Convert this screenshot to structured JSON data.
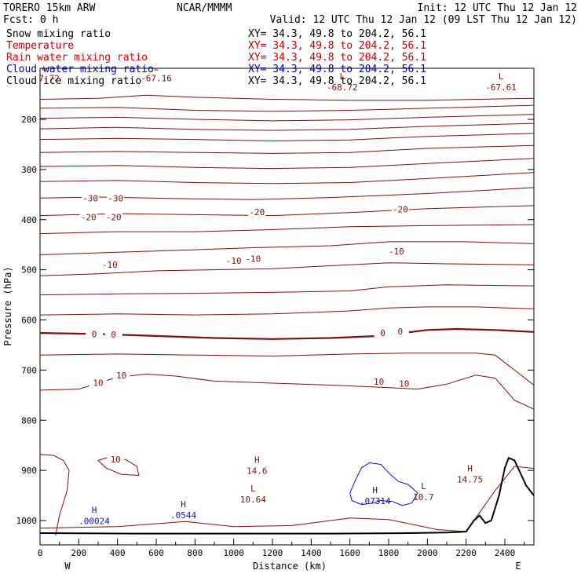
{
  "header": {
    "model": "TORERO  15km ARW",
    "org": "NCAR/MMMM",
    "init": "Init: 12 UTC Thu 12 Jan 12",
    "fcst": "Fcst:     0 h",
    "valid": "Valid: 12 UTC Thu 12 Jan 12 (09 LST Thu 12 Jan 12)"
  },
  "fields": [
    {
      "name": "Snow mixing ratio",
      "xy": "XY=  34.3, 49.8 to 204.2, 56.1",
      "color": "#000000"
    },
    {
      "name": "Temperature",
      "xy": "XY=  34.3, 49.8 to 204.2, 56.1",
      "color": "#c00000"
    },
    {
      "name": "Rain water mixing ratio",
      "xy": "XY=  34.3, 49.8 to 204.2, 56.1",
      "color": "#e00000"
    },
    {
      "name": "Cloud water mixing ratio",
      "xy": "XY=  34.3, 49.8 to 204.2, 56.1",
      "color": "#0000c0"
    },
    {
      "name": "Cloud ice mixing ratio",
      "xy": "XY=  34.3, 49.8 to 204.2, 56.1",
      "color": "#000000"
    }
  ],
  "colors": {
    "temperature": "#7a1010",
    "cloud_water": "#1010c0",
    "terrain": "#000000"
  },
  "chart_data": {
    "type": "vertical cross-section contour",
    "xlabel": "Distance (km)",
    "ylabel": "Pressure (hPa)",
    "xlim": [
      0,
      2550
    ],
    "ylim": [
      1035,
      90
    ],
    "xticks": [
      "0",
      "200",
      "400",
      "600",
      "800",
      "1000",
      "1200",
      "1400",
      "1600",
      "1800",
      "2000",
      "2200",
      "2400"
    ],
    "yticks": [
      "200",
      "300",
      "400",
      "500",
      "600",
      "700",
      "800",
      "900",
      "1000"
    ],
    "x_endpoints": {
      "left": "W",
      "right": "E"
    },
    "temperature_isotherms": [
      {
        "pts": [
          [
            0,
            160
          ],
          [
            300,
            158
          ],
          [
            550,
            152
          ],
          [
            800,
            156
          ],
          [
            1200,
            160
          ],
          [
            1600,
            162
          ],
          [
            2000,
            162
          ],
          [
            2550,
            158
          ]
        ]
      },
      {
        "pts": [
          [
            0,
            178
          ],
          [
            400,
            176
          ],
          [
            800,
            182
          ],
          [
            1200,
            184
          ],
          [
            1600,
            182
          ],
          [
            2000,
            178
          ],
          [
            2550,
            172
          ]
        ]
      },
      {
        "pts": [
          [
            0,
            198
          ],
          [
            400,
            196
          ],
          [
            800,
            200
          ],
          [
            1200,
            203
          ],
          [
            1600,
            201
          ],
          [
            2000,
            196
          ],
          [
            2550,
            190
          ]
        ]
      },
      {
        "pts": [
          [
            0,
            219
          ],
          [
            400,
            216
          ],
          [
            800,
            220
          ],
          [
            1200,
            222
          ],
          [
            1600,
            220
          ],
          [
            2000,
            214
          ],
          [
            2550,
            208
          ]
        ]
      },
      {
        "pts": [
          [
            0,
            240
          ],
          [
            400,
            238
          ],
          [
            800,
            240
          ],
          [
            1200,
            243
          ],
          [
            1600,
            241
          ],
          [
            2000,
            234
          ],
          [
            2550,
            228
          ]
        ]
      },
      {
        "pts": [
          [
            0,
            266
          ],
          [
            400,
            264
          ],
          [
            800,
            266
          ],
          [
            1200,
            268
          ],
          [
            1600,
            266
          ],
          [
            2000,
            258
          ],
          [
            2550,
            252
          ]
        ]
      },
      {
        "pts": [
          [
            0,
            294
          ],
          [
            400,
            292
          ],
          [
            800,
            296
          ],
          [
            1200,
            298
          ],
          [
            1600,
            296
          ],
          [
            2000,
            288
          ],
          [
            2550,
            278
          ]
        ]
      },
      {
        "pts": [
          [
            0,
            324
          ],
          [
            400,
            322
          ],
          [
            800,
            326
          ],
          [
            1200,
            328
          ],
          [
            1600,
            326
          ],
          [
            2000,
            318
          ],
          [
            2550,
            306
          ]
        ]
      },
      {
        "pts": [
          [
            0,
            357
          ],
          [
            300,
            355
          ],
          [
            700,
            358
          ],
          [
            1100,
            360
          ],
          [
            1500,
            356
          ],
          [
            2000,
            348
          ],
          [
            2550,
            336
          ]
        ]
      },
      {
        "pts": [
          [
            0,
            392
          ],
          [
            400,
            388
          ],
          [
            800,
            390
          ],
          [
            1200,
            392
          ],
          [
            1600,
            386
          ],
          [
            2000,
            378
          ],
          [
            2550,
            372
          ]
        ]
      },
      {
        "pts": [
          [
            0,
            428
          ],
          [
            400,
            424
          ],
          [
            800,
            424
          ],
          [
            1200,
            420
          ],
          [
            1600,
            414
          ],
          [
            2000,
            412
          ],
          [
            2550,
            410
          ]
        ]
      },
      {
        "pts": [
          [
            0,
            470
          ],
          [
            400,
            465
          ],
          [
            800,
            460
          ],
          [
            1100,
            456
          ],
          [
            1500,
            452
          ],
          [
            1800,
            444
          ],
          [
            2200,
            444
          ],
          [
            2550,
            448
          ]
        ]
      },
      {
        "pts": [
          [
            0,
            512
          ],
          [
            300,
            508
          ],
          [
            600,
            502
          ],
          [
            900,
            500
          ],
          [
            1200,
            498
          ],
          [
            1500,
            492
          ],
          [
            1800,
            486
          ],
          [
            2100,
            488
          ],
          [
            2550,
            490
          ]
        ]
      },
      {
        "pts": [
          [
            0,
            550
          ],
          [
            400,
            548
          ],
          [
            800,
            547
          ],
          [
            1200,
            545
          ],
          [
            1600,
            542
          ],
          [
            1800,
            534
          ],
          [
            2100,
            530
          ],
          [
            2550,
            532
          ]
        ]
      },
      {
        "pts": [
          [
            0,
            590
          ],
          [
            400,
            588
          ],
          [
            800,
            590
          ],
          [
            1200,
            588
          ],
          [
            1600,
            582
          ],
          [
            1800,
            576
          ],
          [
            2000,
            574
          ],
          [
            2250,
            574
          ],
          [
            2550,
            578
          ]
        ]
      },
      {
        "pts": [
          [
            0,
            626
          ],
          [
            300,
            628
          ],
          [
            600,
            632
          ],
          [
            900,
            636
          ],
          [
            1200,
            638
          ],
          [
            1500,
            636
          ],
          [
            1750,
            632
          ],
          [
            2000,
            620
          ],
          [
            2150,
            618
          ],
          [
            2350,
            620
          ],
          [
            2550,
            624
          ]
        ],
        "bold": true
      },
      {
        "pts": [
          [
            0,
            670
          ],
          [
            400,
            668
          ],
          [
            800,
            670
          ],
          [
            1200,
            672
          ],
          [
            1600,
            668
          ],
          [
            1900,
            666
          ],
          [
            2250,
            666
          ],
          [
            2350,
            670
          ],
          [
            2450,
            700
          ],
          [
            2550,
            730
          ]
        ]
      },
      {
        "pts": [
          [
            0,
            740
          ],
          [
            200,
            738
          ],
          [
            400,
            714
          ],
          [
            550,
            708
          ],
          [
            700,
            712
          ],
          [
            900,
            722
          ],
          [
            1200,
            726
          ],
          [
            1500,
            730
          ],
          [
            1750,
            734
          ],
          [
            1950,
            738
          ],
          [
            2100,
            728
          ],
          [
            2250,
            710
          ],
          [
            2350,
            716
          ],
          [
            2450,
            760
          ],
          [
            2550,
            778
          ]
        ]
      },
      {
        "pts": [
          [
            0,
            868
          ],
          [
            70,
            870
          ],
          [
            120,
            880
          ],
          [
            150,
            900
          ],
          [
            140,
            940
          ],
          [
            100,
            990
          ],
          [
            80,
            1030
          ]
        ]
      },
      {
        "pts": [
          [
            0,
            1015
          ],
          [
            400,
            1012
          ],
          [
            750,
            1002
          ],
          [
            1000,
            1012
          ],
          [
            1300,
            1010
          ],
          [
            1600,
            995
          ],
          [
            1800,
            998
          ],
          [
            2050,
            1018
          ],
          [
            2200,
            1022
          ],
          [
            2350,
            940
          ],
          [
            2450,
            892
          ],
          [
            2550,
            896
          ]
        ]
      }
    ],
    "isotherm_labels": [
      {
        "text": "-30",
        "x": 260,
        "p": 357
      },
      {
        "text": "-30",
        "x": 390,
        "p": 357
      },
      {
        "text": "-20",
        "x": 250,
        "p": 395
      },
      {
        "text": "-20",
        "x": 380,
        "p": 395
      },
      {
        "text": "-20",
        "x": 1120,
        "p": 385
      },
      {
        "text": "-20",
        "x": 1860,
        "p": 379
      },
      {
        "text": "-10",
        "x": 360,
        "p": 490
      },
      {
        "text": "-10",
        "x": 1000,
        "p": 482
      },
      {
        "text": "-10",
        "x": 1100,
        "p": 478
      },
      {
        "text": "-10",
        "x": 1840,
        "p": 463
      },
      {
        "text": "0",
        "x": 280,
        "p": 628
      },
      {
        "text": "0",
        "x": 380,
        "p": 629
      },
      {
        "text": "0",
        "x": 1770,
        "p": 626
      },
      {
        "text": "0",
        "x": 1860,
        "p": 623
      },
      {
        "text": "10",
        "x": 300,
        "p": 725
      },
      {
        "text": "10",
        "x": 420,
        "p": 710
      },
      {
        "text": "10",
        "x": 1750,
        "p": 723
      },
      {
        "text": "10",
        "x": 1880,
        "p": 727
      },
      {
        "text": "10",
        "x": 390,
        "p": 878
      }
    ],
    "isolated_contour": {
      "pts": [
        [
          300,
          880
        ],
        [
          360,
          873
        ],
        [
          440,
          878
        ],
        [
          500,
          892
        ],
        [
          510,
          910
        ],
        [
          420,
          908
        ],
        [
          340,
          895
        ],
        [
          300,
          880
        ]
      ]
    },
    "cloud_water_contour": {
      "pts": [
        [
          1600,
          945
        ],
        [
          1610,
          960
        ],
        [
          1660,
          968
        ],
        [
          1720,
          965
        ],
        [
          1760,
          960
        ],
        [
          1820,
          962
        ],
        [
          1870,
          970
        ],
        [
          1920,
          965
        ],
        [
          1950,
          945
        ],
        [
          1900,
          928
        ],
        [
          1850,
          922
        ],
        [
          1800,
          905
        ],
        [
          1760,
          888
        ],
        [
          1700,
          885
        ],
        [
          1660,
          895
        ],
        [
          1630,
          918
        ],
        [
          1600,
          945
        ]
      ]
    },
    "extrema": [
      {
        "kind": "H",
        "value": ".00024",
        "x": 280,
        "p": 985,
        "series": "cloud_water"
      },
      {
        "kind": "H",
        "value": ".0544",
        "x": 740,
        "p": 973,
        "series": "cloud_water"
      },
      {
        "kind": "H",
        "value": ".07314",
        "x": 1730,
        "p": 945,
        "series": "cloud_water"
      },
      {
        "kind": "H",
        "value": "14.6",
        "x": 1120,
        "p": 885,
        "series": "temperature"
      },
      {
        "kind": "L",
        "value": "10.64",
        "x": 1100,
        "p": 942,
        "series": "temperature"
      },
      {
        "kind": "L",
        "value": "10.7",
        "x": 1980,
        "p": 937,
        "series": "temperature"
      },
      {
        "kind": "H",
        "value": "14.75",
        "x": 2220,
        "p": 902,
        "series": "temperature"
      },
      {
        "kind": "L",
        "value": "-68.72",
        "x": 1560,
        "p": 120,
        "series": "temperature"
      },
      {
        "kind": "L",
        "value": "-67.61",
        "x": 2380,
        "p": 120,
        "series": "temperature"
      },
      {
        "kind": "L",
        "value": "-67.16",
        "x": 600,
        "p": 102,
        "series": "temperature"
      },
      {
        "kind": "L",
        "value": "-67.72",
        "x": 20,
        "p": 102,
        "series": "temperature"
      }
    ],
    "terrain": {
      "pts": [
        [
          0,
          1025
        ],
        [
          500,
          1026
        ],
        [
          1000,
          1026
        ],
        [
          1500,
          1026
        ],
        [
          1900,
          1025
        ],
        [
          2100,
          1024
        ],
        [
          2200,
          1022
        ],
        [
          2240,
          1000
        ],
        [
          2270,
          990
        ],
        [
          2300,
          1005
        ],
        [
          2330,
          1000
        ],
        [
          2370,
          950
        ],
        [
          2400,
          895
        ],
        [
          2420,
          875
        ],
        [
          2450,
          880
        ],
        [
          2480,
          905
        ],
        [
          2510,
          930
        ],
        [
          2550,
          950
        ]
      ]
    }
  }
}
